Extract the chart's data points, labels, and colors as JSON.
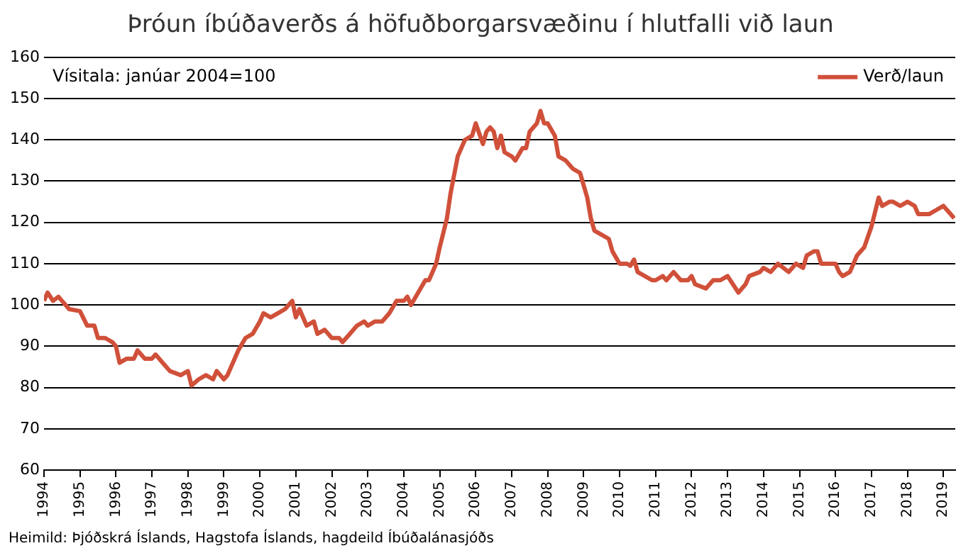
{
  "chart_data": {
    "type": "line",
    "title": "Þróun íbúðaverðs á höfuðborgarsvæðinu í hlutfalli við laun",
    "annotations": [
      "Vísitala: janúar 2004=100",
      "Heimild: Þjóðskrá Íslands, Hagstofa Íslands, hagdeild Íbúðalánasjóðs"
    ],
    "x": [
      1994.0,
      1994.1,
      1994.25,
      1994.4,
      1994.5,
      1994.7,
      1995.0,
      1995.2,
      1995.4,
      1995.5,
      1995.7,
      1995.9,
      1996.0,
      1996.1,
      1996.3,
      1996.5,
      1996.6,
      1996.8,
      1997.0,
      1997.1,
      1997.3,
      1997.5,
      1997.8,
      1998.0,
      1998.1,
      1998.3,
      1998.5,
      1998.7,
      1998.8,
      1999.0,
      1999.1,
      1999.4,
      1999.6,
      1999.8,
      2000.0,
      2000.1,
      2000.3,
      2000.5,
      2000.7,
      2000.9,
      2001.0,
      2001.1,
      2001.3,
      2001.5,
      2001.6,
      2001.8,
      2002.0,
      2002.2,
      2002.3,
      2002.5,
      2002.7,
      2002.9,
      2003.0,
      2003.2,
      2003.4,
      2003.6,
      2003.8,
      2004.0,
      2004.1,
      2004.2,
      2004.4,
      2004.6,
      2004.7,
      2004.9,
      2005.0,
      2005.2,
      2005.3,
      2005.5,
      2005.6,
      2005.7,
      2005.9,
      2006.0,
      2006.2,
      2006.3,
      2006.4,
      2006.5,
      2006.6,
      2006.7,
      2006.8,
      2007.0,
      2007.1,
      2007.3,
      2007.4,
      2007.5,
      2007.7,
      2007.8,
      2007.9,
      2008.0,
      2008.2,
      2008.3,
      2008.5,
      2008.7,
      2008.9,
      2009.0,
      2009.1,
      2009.2,
      2009.3,
      2009.5,
      2009.7,
      2009.8,
      2010.0,
      2010.2,
      2010.3,
      2010.4,
      2010.5,
      2010.7,
      2010.9,
      2011.0,
      2011.2,
      2011.3,
      2011.5,
      2011.7,
      2011.9,
      2012.0,
      2012.1,
      2012.4,
      2012.6,
      2012.8,
      2013.0,
      2013.3,
      2013.5,
      2013.6,
      2013.9,
      2014.0,
      2014.2,
      2014.4,
      2014.7,
      2014.9,
      2015.1,
      2015.2,
      2015.4,
      2015.5,
      2015.6,
      2015.8,
      2016.0,
      2016.1,
      2016.2,
      2016.4,
      2016.6,
      2016.8,
      2017.0,
      2017.2,
      2017.3,
      2017.5,
      2017.6,
      2017.8,
      2018.0,
      2018.2,
      2018.3,
      2018.6,
      2018.8,
      2019.0,
      2019.1,
      2019.3
    ],
    "series": [
      {
        "name": "Verð/laun",
        "color": "#d0503a",
        "values": [
          101,
          103,
          101,
          102,
          101,
          99,
          98.5,
          95,
          95,
          92,
          92,
          91,
          90,
          86,
          87,
          87,
          89,
          87,
          87,
          88,
          86,
          84,
          83,
          84,
          80.5,
          82,
          83,
          82,
          84,
          82,
          83,
          89,
          92,
          93,
          96,
          98,
          97,
          98,
          99,
          101,
          97,
          99,
          95,
          96,
          93,
          94,
          92,
          92,
          91,
          93,
          95,
          96,
          95,
          96,
          96,
          98,
          101,
          101,
          102,
          100,
          103,
          106,
          106,
          110,
          114,
          121,
          127,
          136,
          138,
          140,
          141,
          144,
          139,
          142,
          143,
          142,
          138,
          141,
          137,
          136,
          135,
          138,
          138,
          142,
          144,
          147,
          144,
          144,
          141,
          136,
          135,
          133,
          132,
          129,
          126,
          121,
          118,
          117,
          116,
          113,
          110,
          110,
          109.5,
          111,
          108,
          107,
          106,
          106,
          107,
          106,
          108,
          106,
          106,
          107,
          105,
          104,
          106,
          106,
          107,
          103,
          105,
          107,
          108,
          109,
          108,
          110,
          108,
          110,
          109,
          112,
          113,
          113,
          110,
          110,
          110,
          108,
          107,
          108,
          112,
          114,
          119,
          126,
          124,
          125,
          125,
          124,
          125,
          124,
          122,
          122,
          123,
          124,
          123,
          121
        ]
      }
    ],
    "xlim": [
      1994,
      2019.33
    ],
    "xticks": [
      1994,
      1995,
      1996,
      1997,
      1998,
      1999,
      2000,
      2001,
      2002,
      2003,
      2004,
      2005,
      2006,
      2007,
      2008,
      2009,
      2010,
      2011,
      2012,
      2013,
      2014,
      2015,
      2016,
      2017,
      2018,
      2019
    ],
    "ylim": [
      60,
      160
    ],
    "yticks": [
      60,
      70,
      80,
      90,
      100,
      110,
      120,
      130,
      140,
      150,
      160
    ],
    "grid": "y",
    "legend": "top right",
    "marker": "none",
    "line_style": "solid"
  }
}
